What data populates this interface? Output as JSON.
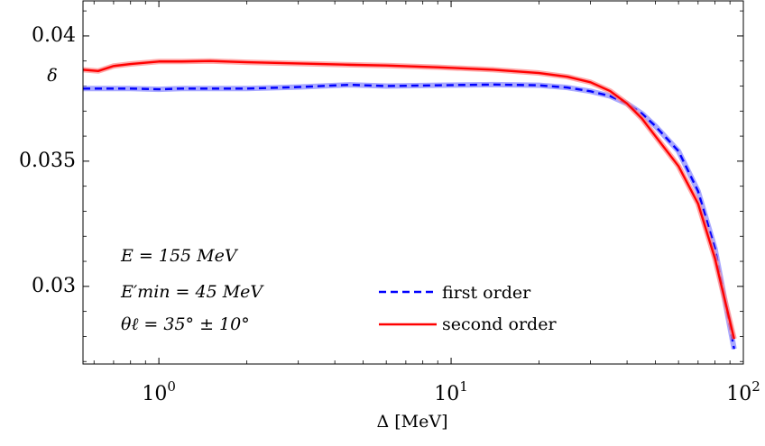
{
  "chart_data": {
    "type": "line",
    "xscale": "log",
    "xlim": [
      0.55,
      100
    ],
    "ylim": [
      0.0269,
      0.0414
    ],
    "xlabel": "Δ [MeV]",
    "ylabel": "δ",
    "xticks": [
      {
        "value": 1,
        "base": "10",
        "exp": "0"
      },
      {
        "value": 10,
        "base": "10",
        "exp": "1"
      },
      {
        "value": 100,
        "base": "10",
        "exp": "2"
      }
    ],
    "yticks": [
      {
        "value": 0.03,
        "label": "0.03"
      },
      {
        "value": 0.035,
        "label": "0.035"
      },
      {
        "value": 0.04,
        "label": "0.04"
      }
    ],
    "grid": false,
    "legend_position": "bottom-right",
    "annotations": {
      "energy": "E = 155 MeV",
      "emin": "E′min = 45 MeV",
      "theta": "θℓ = 35° ± 10°"
    },
    "series": [
      {
        "name": "first order",
        "color": "#0000ff",
        "style": "dashed",
        "band_color": "#8c8cff",
        "x": [
          0.55,
          0.6,
          0.7,
          0.8,
          1.0,
          1.2,
          1.5,
          2.0,
          3.0,
          4.5,
          6.0,
          9.0,
          14.0,
          20.0,
          25.0,
          30.0,
          35.0,
          40.0,
          45.0,
          50.0,
          60.0,
          70.0,
          80.0,
          93.0
        ],
        "values": [
          0.0379,
          0.0379,
          0.0379,
          0.0379,
          0.03787,
          0.0379,
          0.0379,
          0.0379,
          0.03796,
          0.03805,
          0.038,
          0.03803,
          0.03806,
          0.03803,
          0.03794,
          0.03779,
          0.0376,
          0.0373,
          0.0369,
          0.0364,
          0.0354,
          0.0338,
          0.0315,
          0.0275
        ]
      },
      {
        "name": "second order",
        "color": "#ff0000",
        "style": "solid",
        "band_color": "#ff8c8c",
        "x": [
          0.55,
          0.62,
          0.7,
          0.8,
          1.0,
          1.2,
          1.5,
          2.0,
          3.0,
          4.5,
          6.0,
          9.0,
          14.0,
          20.0,
          25.0,
          30.0,
          35.0,
          40.0,
          45.0,
          50.0,
          60.0,
          70.0,
          80.0,
          93.0
        ],
        "values": [
          0.03865,
          0.0386,
          0.0388,
          0.03888,
          0.03898,
          0.03898,
          0.039,
          0.03895,
          0.0389,
          0.03885,
          0.03882,
          0.03875,
          0.03865,
          0.03852,
          0.03837,
          0.03815,
          0.0378,
          0.0373,
          0.0367,
          0.036,
          0.0348,
          0.0333,
          0.0311,
          0.0279
        ]
      }
    ]
  }
}
